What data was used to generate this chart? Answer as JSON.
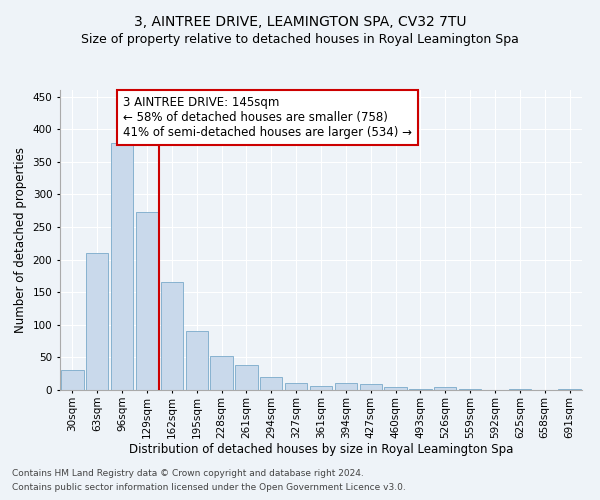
{
  "title": "3, AINTREE DRIVE, LEAMINGTON SPA, CV32 7TU",
  "subtitle": "Size of property relative to detached houses in Royal Leamington Spa",
  "xlabel": "Distribution of detached houses by size in Royal Leamington Spa",
  "ylabel": "Number of detached properties",
  "footnote1": "Contains HM Land Registry data © Crown copyright and database right 2024.",
  "footnote2": "Contains public sector information licensed under the Open Government Licence v3.0.",
  "bin_labels": [
    "30sqm",
    "63sqm",
    "96sqm",
    "129sqm",
    "162sqm",
    "195sqm",
    "228sqm",
    "261sqm",
    "294sqm",
    "327sqm",
    "361sqm",
    "394sqm",
    "427sqm",
    "460sqm",
    "493sqm",
    "526sqm",
    "559sqm",
    "592sqm",
    "625sqm",
    "658sqm",
    "691sqm"
  ],
  "bar_values": [
    30,
    210,
    378,
    273,
    165,
    90,
    52,
    38,
    20,
    11,
    6,
    10,
    9,
    4,
    2,
    5,
    1,
    0,
    1,
    0,
    1
  ],
  "bar_color": "#c9d9eb",
  "bar_edge_color": "#7aaaca",
  "property_bin_index": 3,
  "annotation_text": "3 AINTREE DRIVE: 145sqm\n← 58% of detached houses are smaller (758)\n41% of semi-detached houses are larger (534) →",
  "annotation_box_color": "#ffffff",
  "annotation_box_edge": "#cc0000",
  "vline_color": "#cc0000",
  "ylim": [
    0,
    460
  ],
  "yticks": [
    0,
    50,
    100,
    150,
    200,
    250,
    300,
    350,
    400,
    450
  ],
  "title_fontsize": 10,
  "subtitle_fontsize": 9,
  "xlabel_fontsize": 8.5,
  "ylabel_fontsize": 8.5,
  "tick_fontsize": 7.5,
  "annotation_fontsize": 8.5,
  "footnote_fontsize": 6.5,
  "background_color": "#eef3f8",
  "plot_bg_color": "#eef3f8",
  "grid_color": "#ffffff"
}
